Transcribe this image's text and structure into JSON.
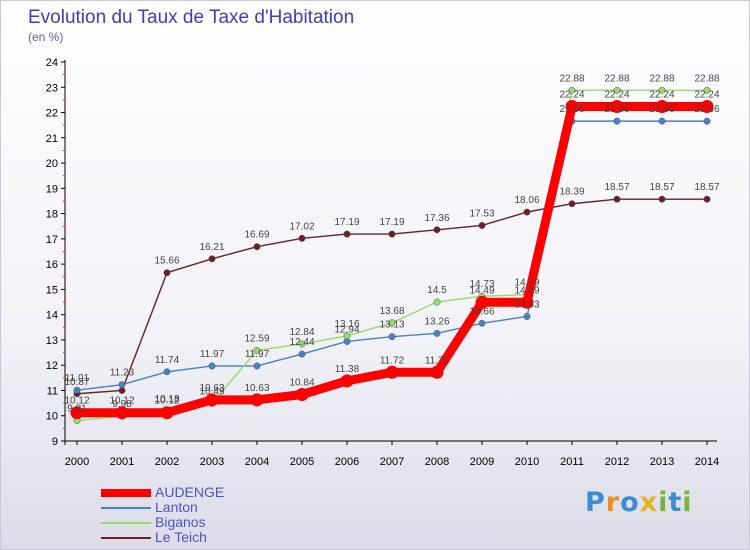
{
  "title": "Evolution du Taux de Taxe d'Habitation",
  "unit_label": "(en %)",
  "chart_data": {
    "type": "line",
    "title": "Evolution du Taux de Taxe d'Habitation",
    "ylabel": "(en %)",
    "xlabel": "",
    "x": [
      "2000",
      "2001",
      "2002",
      "2003",
      "2004",
      "2005",
      "2006",
      "2007",
      "2008",
      "2009",
      "2010",
      "2011",
      "2012",
      "2013",
      "2014"
    ],
    "ylim": [
      9,
      24
    ],
    "yticks": [
      "9",
      "10",
      "11",
      "12",
      "13",
      "14",
      "15",
      "16",
      "17",
      "18",
      "19",
      "20",
      "21",
      "22",
      "23",
      "24"
    ],
    "grid": false,
    "legend_position": "bottom-left",
    "series": [
      {
        "name": "Le Teich",
        "color": "#6e1e28",
        "values": [
          10.87,
          11.0,
          15.66,
          16.21,
          16.69,
          17.02,
          17.19,
          17.19,
          17.36,
          17.53,
          18.06,
          18.39,
          18.57,
          18.57,
          18.57
        ],
        "labels": [
          "10.87",
          "",
          "15.66",
          "16.21",
          "16.69",
          "17.02",
          "17.19",
          "17.19",
          "17.36",
          "17.53",
          "18.06",
          "18.39",
          "18.57",
          "18.57",
          "18.57"
        ]
      },
      {
        "name": "Lanton",
        "color": "#4682c8",
        "values": [
          11.01,
          11.23,
          11.74,
          11.97,
          11.97,
          12.44,
          12.94,
          13.13,
          13.26,
          13.66,
          13.93,
          21.66,
          21.66,
          21.66,
          21.66
        ],
        "labels": [
          "11.01",
          "11.23",
          "11.74",
          "11.97",
          "11.97",
          "12.44",
          "12.94",
          "13.13",
          "13.26",
          "13.66",
          "13.93",
          "21.66",
          "21.66",
          "21.66",
          "21.66"
        ]
      },
      {
        "name": "Biganos",
        "color": "#96dc64",
        "values": [
          9.81,
          9.98,
          10.18,
          10.49,
          12.59,
          12.84,
          13.16,
          13.68,
          14.5,
          14.73,
          14.79,
          22.88,
          22.88,
          22.88,
          22.88
        ],
        "labels": [
          "9.81",
          "9.98",
          "10.18",
          "10.49",
          "12.59",
          "12.84",
          "13.16",
          "13.68",
          "14.5",
          "14.73",
          "14.79",
          "22.88",
          "22.88",
          "22.88",
          "22.88"
        ]
      },
      {
        "name": "AUDENGE",
        "color": "#ff0000",
        "values": [
          10.12,
          10.12,
          10.12,
          10.63,
          10.63,
          10.84,
          11.38,
          11.72,
          11.72,
          14.49,
          14.49,
          22.24,
          22.24,
          22.24,
          22.24
        ],
        "labels": [
          "10.12",
          "10.12",
          "10.12",
          "10.63",
          "10.63",
          "10.84",
          "11.38",
          "11.72",
          "11.72",
          "14.49",
          "14.49",
          "22.24",
          "22.24",
          "22.24",
          "22.24"
        ]
      }
    ]
  },
  "legend": [
    {
      "name": "AUDENGE",
      "color": "#ff0000"
    },
    {
      "name": "Lanton",
      "color": "#4682c8"
    },
    {
      "name": "Biganos",
      "color": "#96dc64"
    },
    {
      "name": "Le Teich",
      "color": "#6e1e28"
    }
  ],
  "logo": {
    "text": "Proxiti",
    "letters": [
      "P",
      "r",
      "o",
      "x",
      "i",
      "t",
      "i"
    ],
    "colors": [
      "#3c8cd2",
      "#f08c28",
      "#3c8cd2",
      "#e6b41e",
      "#78b43c",
      "#3c8cd2",
      "#78b43c"
    ]
  }
}
